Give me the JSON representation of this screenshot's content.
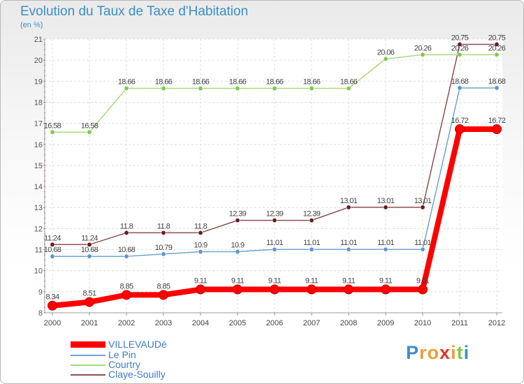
{
  "chart_data": {
    "type": "line",
    "title": "Evolution du Taux de Taxe d'Habitation",
    "subtitle": "(en %)",
    "x": [
      "2000",
      "2001",
      "2002",
      "2003",
      "2004",
      "2005",
      "2006",
      "2007",
      "2008",
      "2009",
      "2010",
      "2011",
      "2012"
    ],
    "ylim": [
      8,
      21
    ],
    "yticks": [
      "8",
      "9",
      "10",
      "11",
      "12",
      "13",
      "14",
      "15",
      "16",
      "17",
      "18",
      "19",
      "20",
      "21"
    ],
    "grid": true,
    "legend_position": "bottom-left",
    "series": [
      {
        "name": "VILLEVAUDé",
        "color": "#ff0000",
        "marker_color": "#ff0000",
        "width": 8,
        "marker_r": 6.5,
        "values": [
          8.34,
          8.51,
          8.85,
          8.85,
          9.11,
          9.11,
          9.11,
          9.11,
          9.11,
          9.11,
          9.11,
          16.72,
          16.72
        ],
        "labels": [
          "8.34",
          "8.51",
          "8.85",
          "8.85",
          "9.11",
          "9.11",
          "9.11",
          "9.11",
          "9.11",
          "9.11",
          "9.11",
          "16.72",
          "16.72"
        ]
      },
      {
        "name": "Le Pin",
        "color": "#6fa3d2",
        "marker_color": "#5a96cc",
        "width": 1.5,
        "marker_r": 3.2,
        "values": [
          10.68,
          10.68,
          10.68,
          10.79,
          10.9,
          10.9,
          11.01,
          11.01,
          11.01,
          11.01,
          11.01,
          18.68,
          18.68
        ],
        "labels": [
          "10.68",
          "10.68",
          "10.68",
          "10.79",
          "10.9",
          "10.9",
          "11.01",
          "11.01",
          "11.01",
          "11.01",
          "11.01",
          "18.68",
          "18.68"
        ]
      },
      {
        "name": "Courtry",
        "color": "#a5dc7a",
        "marker_color": "#7cc94a",
        "width": 1.5,
        "marker_r": 3.2,
        "values": [
          16.58,
          16.58,
          18.66,
          18.66,
          18.66,
          18.66,
          18.66,
          18.66,
          18.66,
          20.06,
          20.26,
          20.26,
          20.26
        ],
        "labels": [
          "16.58",
          "16.58",
          "18.66",
          "18.66",
          "18.66",
          "18.66",
          "18.66",
          "18.66",
          "18.66",
          "20.06",
          "20.26",
          "20.26",
          "20.26"
        ]
      },
      {
        "name": "Claye-Souilly",
        "color": "#8e5052",
        "marker_color": "#6b1a1e",
        "width": 1.5,
        "marker_r": 3.2,
        "values": [
          11.24,
          11.24,
          11.8,
          11.8,
          11.8,
          12.39,
          12.39,
          12.39,
          13.01,
          13.01,
          13.01,
          20.75,
          20.75
        ],
        "labels": [
          "11.24",
          "11.24",
          "11.8",
          "11.8",
          "11.8",
          "12.39",
          "12.39",
          "12.39",
          "13.01",
          "13.01",
          "13.01",
          "20.75",
          "20.75"
        ]
      }
    ]
  },
  "logo": {
    "letters": [
      "P",
      "r",
      "o",
      "x",
      "i",
      "t",
      "i"
    ],
    "colors": [
      "#3d8fc4",
      "#e8a03a",
      "#e8a03a",
      "#d9362c",
      "#e8a03a",
      "#7cc94a",
      "#3d8fc4"
    ]
  }
}
